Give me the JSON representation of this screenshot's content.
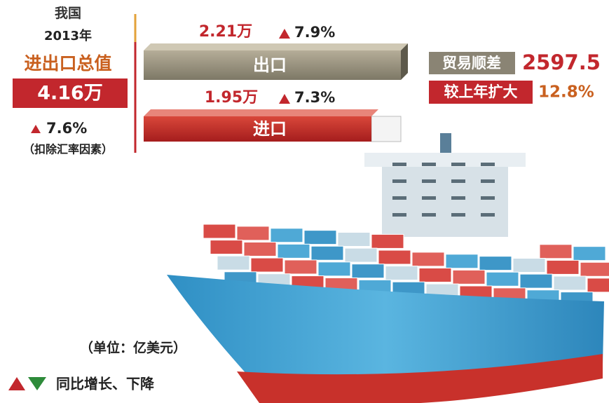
{
  "summary": {
    "country": "我国",
    "year": "2013年",
    "label": "进出口总值",
    "total": "4.16万",
    "growth": "7.6%",
    "note": "（扣除汇率因素）"
  },
  "export": {
    "amount": "2.21万",
    "growth": "7.9%",
    "label": "出口"
  },
  "import": {
    "amount": "1.95万",
    "growth": "7.3%",
    "label": "进口"
  },
  "surplus": {
    "label": "贸易顺差",
    "value": "2597.5",
    "change_label": "较上年扩大",
    "change": "12.8%"
  },
  "legend": {
    "unit": "（单位：亿美元）",
    "arrows": "同比增长、下降"
  }
}
